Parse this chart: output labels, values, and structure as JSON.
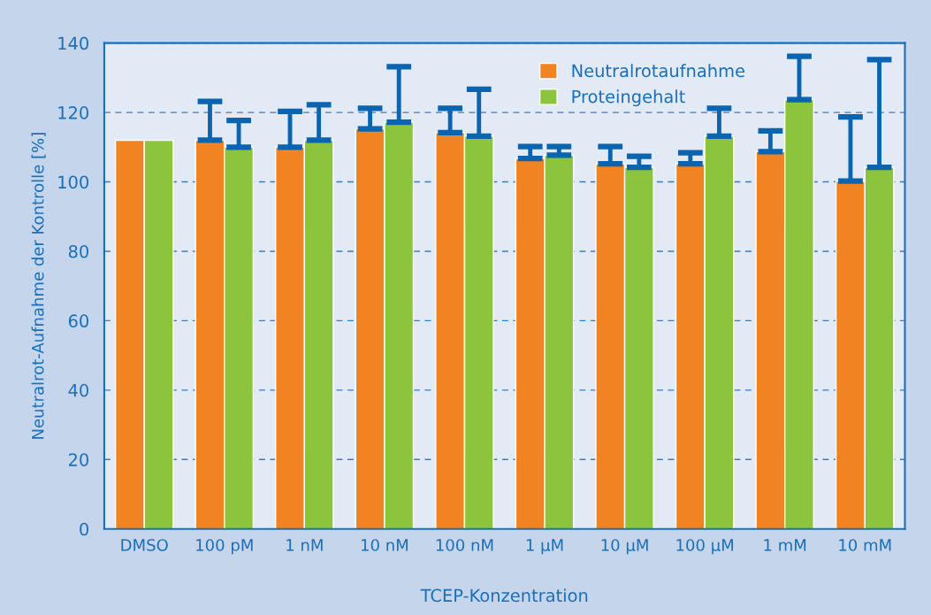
{
  "chart_data": {
    "type": "bar",
    "xlabel": "TCEP-Konzentration",
    "ylabel": "Neutralrot-Aufnahme der Kontrolle [%]",
    "categories": [
      "DMSO",
      "100 pM",
      "1 nM",
      "10 nM",
      "100 nM",
      "1 µM",
      "10 µM",
      "100 µM",
      "1 mM",
      "10 mM"
    ],
    "series": [
      {
        "name": "Neutralrotaufnahme",
        "color": "#f28322",
        "values": [
          112,
          112,
          110,
          115.3,
          114.2,
          106.7,
          105.2,
          105.2,
          108.7,
          100.2
        ],
        "errors": [
          null,
          [
            112,
            123.2
          ],
          [
            110,
            120.3
          ],
          [
            115.3,
            121.2
          ],
          [
            114.2,
            121.2
          ],
          [
            106.7,
            110.2
          ],
          [
            105.2,
            110.2
          ],
          [
            105.2,
            108.4
          ],
          [
            108.7,
            114.7
          ],
          [
            100.2,
            118.7
          ]
        ]
      },
      {
        "name": "Proteingehalt",
        "color": "#8cc43e",
        "values": [
          112,
          110,
          112,
          117.2,
          113.2,
          107.7,
          104.2,
          113.2,
          123.7,
          104.2
        ],
        "errors": [
          null,
          [
            110,
            117.7
          ],
          [
            112,
            122.2
          ],
          [
            117.2,
            133.2
          ],
          [
            113.2,
            126.7
          ],
          [
            107.7,
            110.2
          ],
          [
            104.2,
            107.4
          ],
          [
            113.2,
            121.2
          ],
          [
            123.7,
            136.2
          ],
          [
            104.2,
            135.2
          ]
        ]
      }
    ],
    "ylim": [
      0,
      140
    ],
    "yticks": [
      0,
      20,
      40,
      60,
      80,
      100,
      120,
      140
    ],
    "grid": "y",
    "legend": "top right"
  }
}
